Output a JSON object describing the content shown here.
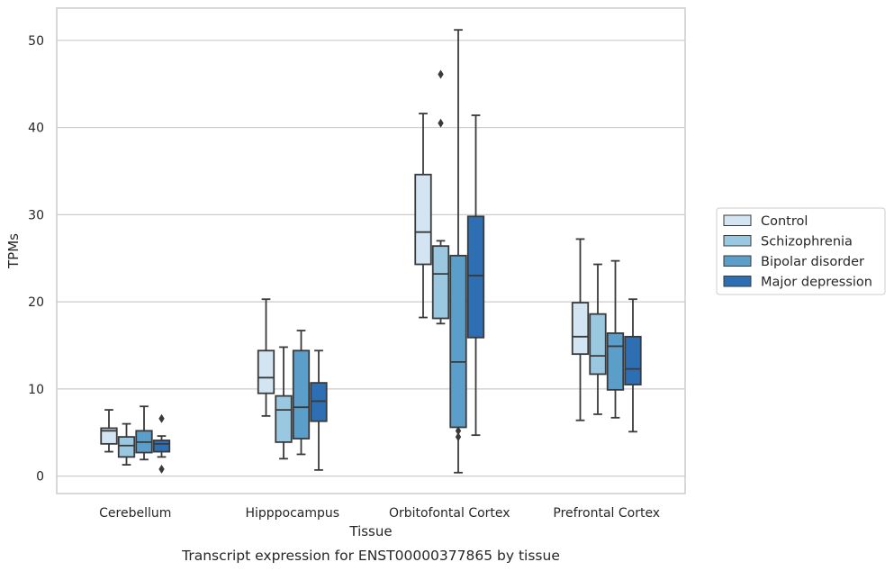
{
  "chart_data": {
    "type": "boxplot",
    "caption": "Transcript expression for ENST00000377865 by tissue",
    "xlabel": "Tissue",
    "ylabel": "TPMs",
    "ylim": [
      -2,
      53.7
    ],
    "yticks": [
      0,
      10,
      20,
      30,
      40,
      50
    ],
    "grid": "horizontal",
    "legend_position": "right-outside",
    "categories": [
      "Cerebellum",
      "Hipppocampus",
      "Orbitofontal Cortex",
      "Prefrontal Cortex"
    ],
    "series": [
      {
        "name": "Control",
        "color": "#d3e4f3",
        "boxes": [
          {
            "whislo": 2.8,
            "q1": 3.7,
            "med": 5.2,
            "q3": 5.5,
            "whishi": 7.6,
            "fliers": []
          },
          {
            "whislo": 6.9,
            "q1": 9.5,
            "med": 11.3,
            "q3": 14.4,
            "whishi": 20.3,
            "fliers": []
          },
          {
            "whislo": 18.2,
            "q1": 24.3,
            "med": 28.0,
            "q3": 34.6,
            "whishi": 41.6,
            "fliers": []
          },
          {
            "whislo": 6.4,
            "q1": 14.0,
            "med": 16.0,
            "q3": 19.9,
            "whishi": 27.2,
            "fliers": []
          }
        ]
      },
      {
        "name": "Schizophrenia",
        "color": "#9ac8e0",
        "boxes": [
          {
            "whislo": 1.3,
            "q1": 2.2,
            "med": 3.5,
            "q3": 4.5,
            "whishi": 6.0,
            "fliers": []
          },
          {
            "whislo": 2.0,
            "q1": 3.9,
            "med": 7.6,
            "q3": 9.2,
            "whishi": 14.8,
            "fliers": []
          },
          {
            "whislo": 17.5,
            "q1": 18.1,
            "med": 23.2,
            "q3": 26.4,
            "whishi": 27.0,
            "fliers": [
              46.1,
              40.5
            ]
          },
          {
            "whislo": 7.1,
            "q1": 11.7,
            "med": 13.8,
            "q3": 18.6,
            "whishi": 24.3,
            "fliers": []
          }
        ]
      },
      {
        "name": "Bipolar disorder",
        "color": "#5a9ec9",
        "boxes": [
          {
            "whislo": 1.9,
            "q1": 2.7,
            "med": 3.9,
            "q3": 5.2,
            "whishi": 8.0,
            "fliers": []
          },
          {
            "whislo": 2.5,
            "q1": 4.3,
            "med": 7.9,
            "q3": 14.4,
            "whishi": 16.7,
            "fliers": []
          },
          {
            "whislo": 0.4,
            "q1": 5.6,
            "med": 13.1,
            "q3": 25.3,
            "whishi": 51.2,
            "fliers": [
              5.2,
              4.5
            ]
          },
          {
            "whislo": 6.7,
            "q1": 9.9,
            "med": 14.9,
            "q3": 16.4,
            "whishi": 24.7,
            "fliers": []
          }
        ]
      },
      {
        "name": "Major depression",
        "color": "#2d6fb2",
        "boxes": [
          {
            "whislo": 2.2,
            "q1": 2.8,
            "med": 3.7,
            "q3": 4.1,
            "whishi": 4.6,
            "fliers": [
              6.6,
              0.8
            ]
          },
          {
            "whislo": 0.7,
            "q1": 6.3,
            "med": 8.6,
            "q3": 10.7,
            "whishi": 14.4,
            "fliers": []
          },
          {
            "whislo": 4.7,
            "q1": 15.9,
            "med": 23.0,
            "q3": 29.8,
            "whishi": 41.4,
            "fliers": []
          },
          {
            "whislo": 5.1,
            "q1": 10.5,
            "med": 12.3,
            "q3": 16.0,
            "whishi": 20.3,
            "fliers": []
          }
        ]
      }
    ]
  }
}
